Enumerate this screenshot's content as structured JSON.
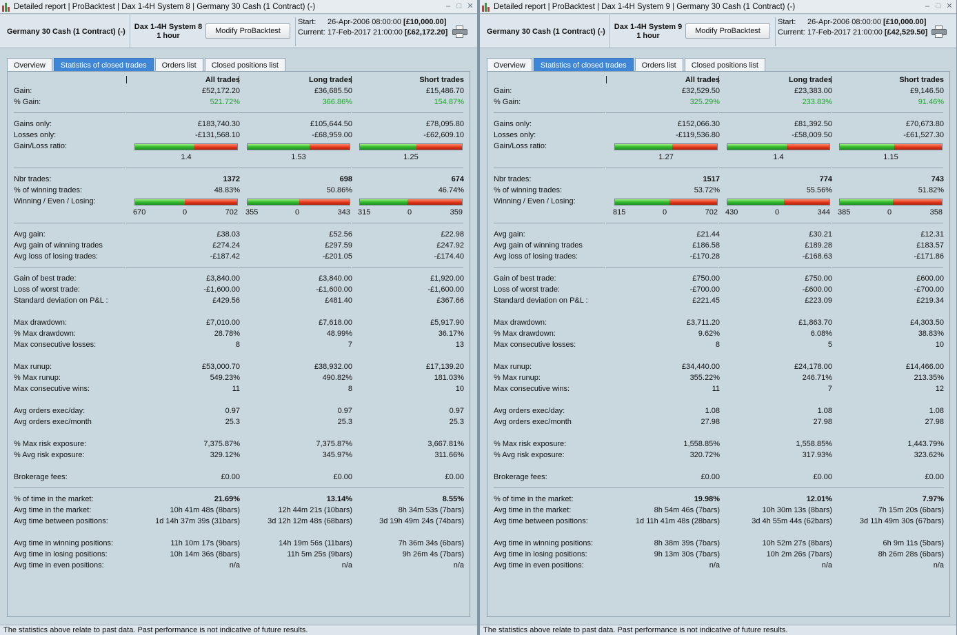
{
  "labels": {
    "gain": "Gain:",
    "pct_gain": "% Gain:",
    "gains_only": "Gains only:",
    "losses_only": "Losses only:",
    "gain_loss_ratio": "Gain/Loss ratio:",
    "nbr_trades": "Nbr trades:",
    "pct_winning": "% of winning trades:",
    "wel": "Winning / Even / Losing:",
    "avg_gain": "Avg gain:",
    "avg_gain_winning": "Avg gain of winning trades",
    "avg_loss_losing": "Avg loss of losing trades:",
    "best_trade": "Gain of best trade:",
    "worst_trade": "Loss of worst trade:",
    "std_dev": "Standard deviation on P&L :",
    "max_dd": "Max drawdown:",
    "pct_max_dd": "% Max drawdown:",
    "max_cons_losses": "Max consecutive losses:",
    "max_runup": "Max runup:",
    "pct_max_runup": "% Max runup:",
    "max_cons_wins": "Max consecutive wins:",
    "orders_day": "Avg orders exec/day:",
    "orders_month": "Avg orders exec/month",
    "max_risk": "% Max risk exposure:",
    "avg_risk": "% Avg risk exposure:",
    "brokerage": "Brokerage fees:",
    "pct_time": "% of time in the market:",
    "avg_time": "Avg time in the market:",
    "avg_between": "Avg time between positions:",
    "avg_win_pos": "Avg time in winning positions:",
    "avg_lose_pos": "Avg time in losing positions:",
    "avg_even_pos": "Avg time in even positions:"
  },
  "colors": {
    "tab_active": "#3f87d6",
    "positive_pct": "#1fa32e",
    "bar_win": "#2fb52c",
    "bar_loss": "#e23618"
  },
  "windows": [
    {
      "title": "Detailed report | ProBacktest | Dax 1-4H System 8 | Germany 30 Cash (1 Contract) (-)",
      "instrument": "Germany 30 Cash (1 Contract) (-)",
      "system": "Dax 1-4H System 8",
      "timeframe": "1 hour",
      "modify_button": "Modify ProBacktest",
      "start_label": "Start:",
      "start_date": "26-Apr-2006 08:00:00",
      "start_value": "[£10,000.00]",
      "current_label": "Current:",
      "current_date": "17-Feb-2017 21:00:00",
      "current_value": "[£62,172.20]",
      "tabs": [
        "Overview",
        "Statistics of closed trades",
        "Orders list",
        "Closed positions list"
      ],
      "columns": [
        "All trades",
        "Long trades",
        "Short trades"
      ],
      "footer": "The statistics above relate to past data. Past performance is not indicative of future results.",
      "stats": {
        "gain": [
          "£52,172.20",
          "£36,685.50",
          "£15,486.70"
        ],
        "pct_gain": [
          "521.72%",
          "366.86%",
          "154.87%"
        ],
        "gains_only": [
          "£183,740.30",
          "£105,644.50",
          "£78,095.80"
        ],
        "losses_only": [
          "-£131,568.10",
          "-£68,959.00",
          "-£62,609.10"
        ],
        "ratio": [
          "1.4",
          "1.53",
          "1.25"
        ],
        "ratio_bar": [
          0.583,
          0.605,
          0.555
        ],
        "nbr_trades": [
          "1372",
          "698",
          "674"
        ],
        "pct_winning": [
          "48.83%",
          "50.86%",
          "46.74%"
        ],
        "winning": [
          "670",
          "355",
          "315"
        ],
        "even": [
          "0",
          "0",
          "0"
        ],
        "losing": [
          "702",
          "343",
          "359"
        ],
        "win_bar": [
          0.488,
          0.509,
          0.467
        ],
        "avg_gain": [
          "£38.03",
          "£52.56",
          "£22.98"
        ],
        "avg_gain_winning": [
          "£274.24",
          "£297.59",
          "£247.92"
        ],
        "avg_loss_losing": [
          "-£187.42",
          "-£201.05",
          "-£174.40"
        ],
        "best_trade": [
          "£3,840.00",
          "£3,840.00",
          "£1,920.00"
        ],
        "worst_trade": [
          "-£1,600.00",
          "-£1,600.00",
          "-£1,600.00"
        ],
        "std_dev": [
          "£429.56",
          "£481.40",
          "£367.66"
        ],
        "max_dd": [
          "£7,010.00",
          "£7,618.00",
          "£5,917.90"
        ],
        "pct_max_dd": [
          "28.78%",
          "48.99%",
          "36.17%"
        ],
        "max_cons_losses": [
          "8",
          "7",
          "13"
        ],
        "max_runup": [
          "£53,000.70",
          "£38,932.00",
          "£17,139.20"
        ],
        "pct_max_runup": [
          "549.23%",
          "490.82%",
          "181.03%"
        ],
        "max_cons_wins": [
          "11",
          "8",
          "10"
        ],
        "orders_day": [
          "0.97",
          "0.97",
          "0.97"
        ],
        "orders_month": [
          "25.3",
          "25.3",
          "25.3"
        ],
        "max_risk": [
          "7,375.87%",
          "7,375.87%",
          "3,667.81%"
        ],
        "avg_risk": [
          "329.12%",
          "345.97%",
          "311.66%"
        ],
        "brokerage": [
          "£0.00",
          "£0.00",
          "£0.00"
        ],
        "pct_time": [
          "21.69%",
          "13.14%",
          "8.55%"
        ],
        "avg_time": [
          "10h 41m 48s (8bars)",
          "12h 44m 21s (10bars)",
          "8h 34m 53s (7bars)"
        ],
        "avg_between": [
          "1d 14h 37m 39s (31bars)",
          "3d 12h 12m 48s (68bars)",
          "3d 19h 49m 24s (74bars)"
        ],
        "avg_win_pos": [
          "11h 10m 17s (9bars)",
          "14h 19m 56s (11bars)",
          "7h 36m 34s (6bars)"
        ],
        "avg_lose_pos": [
          "10h 14m 36s (8bars)",
          "11h 5m 25s (9bars)",
          "9h 26m 4s (7bars)"
        ],
        "avg_even_pos": [
          "n/a",
          "n/a",
          "n/a"
        ]
      }
    },
    {
      "title": "Detailed report | ProBacktest | Dax 1-4H System 9 | Germany 30 Cash (1 Contract) (-)",
      "instrument": "Germany 30 Cash (1 Contract) (-)",
      "system": "Dax 1-4H System 9",
      "timeframe": "1 hour",
      "modify_button": "Modify ProBacktest",
      "start_label": "Start:",
      "start_date": "26-Apr-2006 08:00:00",
      "start_value": "[£10,000.00]",
      "current_label": "Current:",
      "current_date": "17-Feb-2017 21:00:00",
      "current_value": "[£42,529.50]",
      "tabs": [
        "Overview",
        "Statistics of closed trades",
        "Orders list",
        "Closed positions list"
      ],
      "columns": [
        "All trades",
        "Long trades",
        "Short trades"
      ],
      "footer": "The statistics above relate to past data. Past performance is not indicative of future results.",
      "stats": {
        "gain": [
          "£32,529.50",
          "£23,383.00",
          "£9,146.50"
        ],
        "pct_gain": [
          "325.29%",
          "233.83%",
          "91.46%"
        ],
        "gains_only": [
          "£152,066.30",
          "£81,392.50",
          "£70,673.80"
        ],
        "losses_only": [
          "-£119,536.80",
          "-£58,009.50",
          "-£61,527.30"
        ],
        "ratio": [
          "1.27",
          "1.4",
          "1.15"
        ],
        "ratio_bar": [
          0.56,
          0.583,
          0.535
        ],
        "nbr_trades": [
          "1517",
          "774",
          "743"
        ],
        "pct_winning": [
          "53.72%",
          "55.56%",
          "51.82%"
        ],
        "winning": [
          "815",
          "430",
          "385"
        ],
        "even": [
          "0",
          "0",
          "0"
        ],
        "losing": [
          "702",
          "344",
          "358"
        ],
        "win_bar": [
          0.537,
          0.556,
          0.518
        ],
        "avg_gain": [
          "£21.44",
          "£30.21",
          "£12.31"
        ],
        "avg_gain_winning": [
          "£186.58",
          "£189.28",
          "£183.57"
        ],
        "avg_loss_losing": [
          "-£170.28",
          "-£168.63",
          "-£171.86"
        ],
        "best_trade": [
          "£750.00",
          "£750.00",
          "£600.00"
        ],
        "worst_trade": [
          "-£700.00",
          "-£600.00",
          "-£700.00"
        ],
        "std_dev": [
          "£221.45",
          "£223.09",
          "£219.34"
        ],
        "max_dd": [
          "£3,711.20",
          "£1,863.70",
          "£4,303.50"
        ],
        "pct_max_dd": [
          "9.62%",
          "6.08%",
          "38.83%"
        ],
        "max_cons_losses": [
          "8",
          "5",
          "10"
        ],
        "max_runup": [
          "£34,440.00",
          "£24,178.00",
          "£14,466.00"
        ],
        "pct_max_runup": [
          "355.22%",
          "246.71%",
          "213.35%"
        ],
        "max_cons_wins": [
          "11",
          "7",
          "12"
        ],
        "orders_day": [
          "1.08",
          "1.08",
          "1.08"
        ],
        "orders_month": [
          "27.98",
          "27.98",
          "27.98"
        ],
        "max_risk": [
          "1,558.85%",
          "1,558.85%",
          "1,443.79%"
        ],
        "avg_risk": [
          "320.72%",
          "317.93%",
          "323.62%"
        ],
        "brokerage": [
          "£0.00",
          "£0.00",
          "£0.00"
        ],
        "pct_time": [
          "19.98%",
          "12.01%",
          "7.97%"
        ],
        "avg_time": [
          "8h 54m 46s (7bars)",
          "10h 30m 13s (8bars)",
          "7h 15m 20s (6bars)"
        ],
        "avg_between": [
          "1d 11h 41m 48s (28bars)",
          "3d 4h 55m 44s (62bars)",
          "3d 11h 49m 30s (67bars)"
        ],
        "avg_win_pos": [
          "8h 38m 39s (7bars)",
          "10h 52m 27s (8bars)",
          "6h 9m 11s (5bars)"
        ],
        "avg_lose_pos": [
          "9h 13m 30s (7bars)",
          "10h 2m 26s (7bars)",
          "8h 26m 28s (6bars)"
        ],
        "avg_even_pos": [
          "n/a",
          "n/a",
          "n/a"
        ]
      }
    }
  ]
}
